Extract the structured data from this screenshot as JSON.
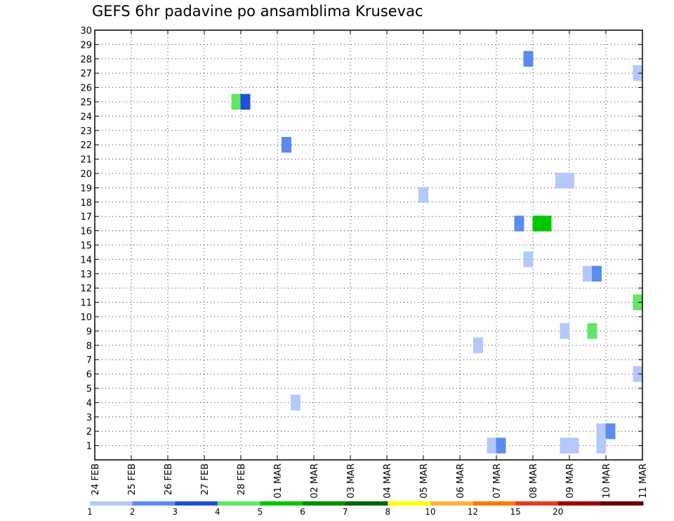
{
  "chart_data": {
    "type": "heatmap",
    "title": "GEFS 6hr padavine po ansamblima Krusevac",
    "xlabel": "",
    "ylabel": "",
    "x_ticks": [
      "24 FEB",
      "25 FEB",
      "26 FEB",
      "27 FEB",
      "28 FEB",
      "01 MAR",
      "02 MAR",
      "03 MAR",
      "04 MAR",
      "05 MAR",
      "06 MAR",
      "07 MAR",
      "08 MAR",
      "09 MAR",
      "10 MAR",
      "11 MAR"
    ],
    "y_ticks": [
      "1",
      "2",
      "3",
      "4",
      "5",
      "6",
      "7",
      "8",
      "9",
      "10",
      "11",
      "12",
      "13",
      "14",
      "15",
      "16",
      "17",
      "18",
      "19",
      "20",
      "21",
      "22",
      "23",
      "24",
      "25",
      "26",
      "27",
      "28",
      "29",
      "30"
    ],
    "xlim_days": [
      0,
      15
    ],
    "ylim": [
      0,
      30
    ],
    "grid": true,
    "colorbar": {
      "labels": [
        "1",
        "2",
        "3",
        "4",
        "5",
        "6",
        "7",
        "8",
        "10",
        "12",
        "15",
        "20"
      ],
      "colors": [
        "#b4c8fa",
        "#5a8cf0",
        "#1e50dc",
        "#64e664",
        "#00c800",
        "#008c00",
        "#006400",
        "#ffff00",
        "#ffb43c",
        "#ff7800",
        "#e63c1e",
        "#a00000",
        "#640000"
      ]
    },
    "cells": [
      {
        "member": 28,
        "day": 11.875,
        "level": 1
      },
      {
        "member": 27,
        "day": 14.875,
        "level": 0
      },
      {
        "member": 25,
        "day": 3.875,
        "level": 3
      },
      {
        "member": 25,
        "day": 4.125,
        "level": 2
      },
      {
        "member": 22,
        "day": 5.25,
        "level": 1
      },
      {
        "member": 19.5,
        "day": 12.75,
        "level": 0
      },
      {
        "member": 19.5,
        "day": 13.0,
        "level": 0
      },
      {
        "member": 18.5,
        "day": 9.0,
        "level": 0
      },
      {
        "member": 16.5,
        "day": 11.625,
        "level": 1
      },
      {
        "member": 16.5,
        "day": 12.125,
        "level": 4
      },
      {
        "member": 16.5,
        "day": 12.375,
        "level": 4
      },
      {
        "member": 14,
        "day": 11.875,
        "level": 0
      },
      {
        "member": 13,
        "day": 13.5,
        "level": 0
      },
      {
        "member": 13,
        "day": 13.75,
        "level": 1
      },
      {
        "member": 11,
        "day": 14.875,
        "level": 3
      },
      {
        "member": 9,
        "day": 12.875,
        "level": 0
      },
      {
        "member": 9,
        "day": 13.625,
        "level": 3
      },
      {
        "member": 8,
        "day": 10.5,
        "level": 0
      },
      {
        "member": 6,
        "day": 14.875,
        "level": 0
      },
      {
        "member": 4,
        "day": 5.5,
        "level": 0
      },
      {
        "member": 2,
        "day": 13.875,
        "level": 0
      },
      {
        "member": 2,
        "day": 14.125,
        "level": 1
      },
      {
        "member": 1,
        "day": 13.875,
        "level": 0
      },
      {
        "member": 1,
        "day": 10.875,
        "level": 0
      },
      {
        "member": 1,
        "day": 11.125,
        "level": 1
      },
      {
        "member": 1,
        "day": 12.875,
        "level": 0
      },
      {
        "member": 1,
        "day": 13.125,
        "level": 0
      }
    ]
  }
}
